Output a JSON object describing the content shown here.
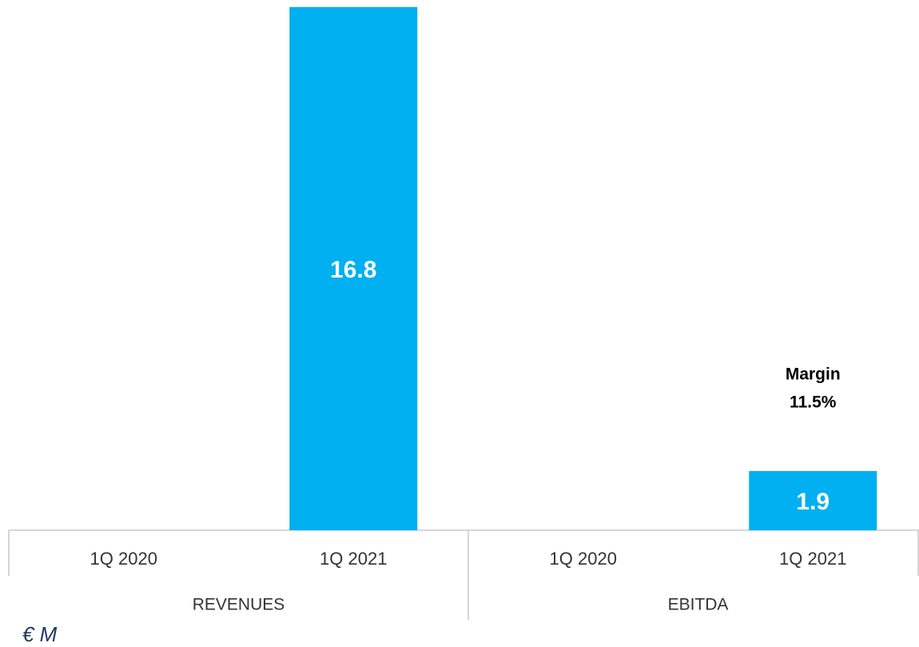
{
  "chart_data": {
    "type": "bar",
    "categories": [
      "1Q 2020",
      "1Q 2021",
      "1Q 2020",
      "1Q 2021"
    ],
    "groups": [
      "REVENUES",
      "EBITDA"
    ],
    "values": [
      null,
      16.8,
      null,
      1.9
    ],
    "color": "#00b0f0",
    "ylim": [
      0,
      17
    ],
    "annotation": [
      "Margin",
      "11.5%"
    ],
    "unit_label": "€ M"
  }
}
